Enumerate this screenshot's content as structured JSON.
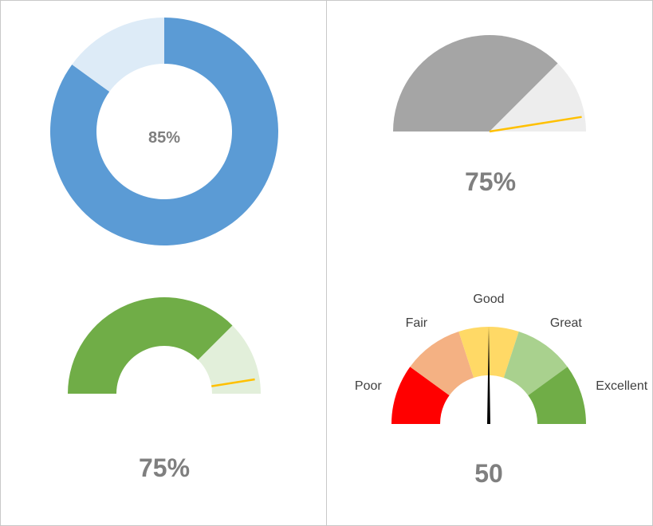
{
  "chart_data": [
    {
      "type": "pie",
      "variant": "donut",
      "value_label": "85%",
      "series": [
        {
          "label": "value",
          "value": 85,
          "color": "#5b9bd5"
        },
        {
          "label": "remainder",
          "value": 15,
          "color": "#ddebf7"
        }
      ]
    },
    {
      "type": "pie",
      "variant": "half-pie-gauge",
      "value_label": "75%",
      "series": [
        {
          "label": "value",
          "value": 75,
          "color": "#a5a5a5"
        },
        {
          "label": "remainder",
          "value": 25,
          "color": "#ededed"
        }
      ],
      "pointer": {
        "value": 95,
        "color": "#ffc000"
      }
    },
    {
      "type": "pie",
      "variant": "half-donut-gauge",
      "value_label": "75%",
      "series": [
        {
          "label": "value",
          "value": 75,
          "color": "#70ad47"
        },
        {
          "label": "remainder",
          "value": 25,
          "color": "#e2efda"
        }
      ],
      "pointer": {
        "value": 95,
        "color": "#ffc000"
      }
    },
    {
      "type": "pie",
      "variant": "half-donut-gauge-bands",
      "value_label": "50",
      "range": [
        0,
        100
      ],
      "bands": [
        {
          "label": "Poor",
          "value": 20,
          "color": "#ff0000"
        },
        {
          "label": "Fair",
          "value": 20,
          "color": "#f4b183"
        },
        {
          "label": "Good",
          "value": 20,
          "color": "#ffd966"
        },
        {
          "label": "Great",
          "value": 20,
          "color": "#a9d18e"
        },
        {
          "label": "Excellent",
          "value": 20,
          "color": "#70ad47"
        }
      ],
      "needle": {
        "value": 50,
        "color": "#000000"
      }
    }
  ]
}
